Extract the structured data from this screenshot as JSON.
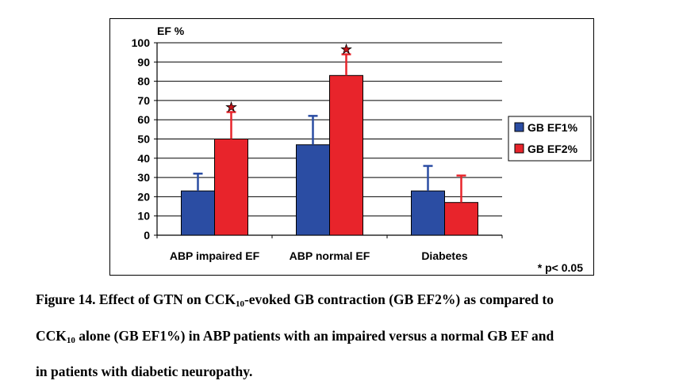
{
  "chart_data": {
    "type": "bar",
    "ylabel": "EF %",
    "ylim": [
      0,
      100
    ],
    "ytick_step": 10,
    "categories": [
      "ABP impaired EF",
      "ABP normal EF",
      "Diabetes"
    ],
    "series": [
      {
        "name": "GB EF1%",
        "values": [
          23,
          47,
          23
        ],
        "errors": [
          9,
          15,
          13
        ],
        "color": "#2b4da3"
      },
      {
        "name": "GB EF2%",
        "values": [
          50,
          83,
          17
        ],
        "errors": [
          14,
          11,
          14
        ],
        "color": "#e8242b"
      }
    ],
    "significance_markers": [
      {
        "category": "ABP impaired EF",
        "series": "GB EF2%",
        "symbol": "★"
      },
      {
        "category": "ABP normal EF",
        "series": "GB EF2%",
        "symbol": "★"
      }
    ],
    "footnote": "* p< 0.05",
    "legend_position": "right",
    "grid": true
  },
  "caption": {
    "line1": {
      "a": "Figure 14. Effect of GTN on CCK",
      "sub": "10",
      "b": "-evoked GB contraction (GB EF2%) as compared to"
    },
    "line2": {
      "a": "CCK",
      "sub": "10",
      "b": " alone (GB EF1%) in ABP patients with an impaired versus a normal GB EF and"
    },
    "line3": "in patients with diabetic neuropathy."
  }
}
